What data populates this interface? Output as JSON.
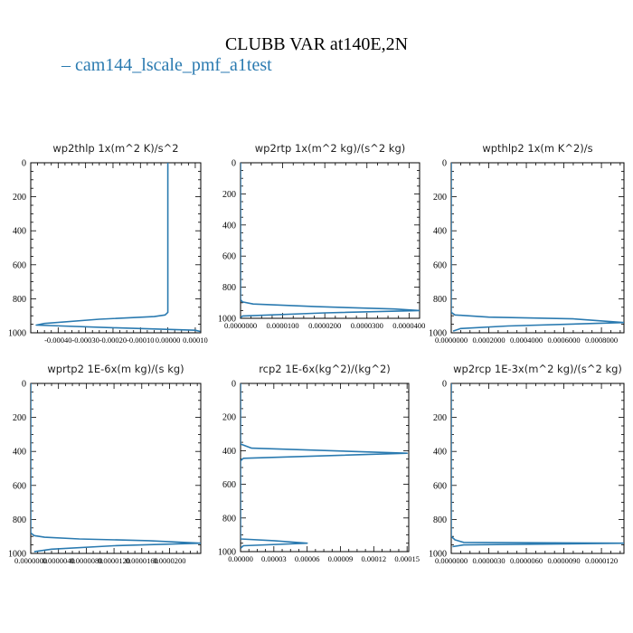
{
  "title": "CLUBB VAR at140E,2N",
  "legend": [
    {
      "label": "cam144_lscale_pmf_a1test",
      "color": "#2a7ab0"
    }
  ],
  "series_color": "#2a7ab0",
  "chart_data": [
    {
      "type": "line",
      "title": "wp2thlp   1x(m^2 K)/s^2",
      "series_name": "cam144_lscale_pmf_a1test",
      "xlim": [
        -0.0005,
        0.00012
      ],
      "ylim": [
        1000,
        0
      ],
      "x_tick_labels": [
        "-0.00040",
        "-0.00030",
        "-0.00020",
        "-0.00010",
        "0.00000",
        "0.00010"
      ],
      "x_tick_values": [
        -0.0004,
        -0.0003,
        -0.0002,
        -0.0001,
        0.0,
        0.0001
      ],
      "y_tick_labels": [
        "0",
        "200",
        "400",
        "600",
        "800",
        "1000"
      ],
      "y_tick_values": [
        0,
        200,
        400,
        600,
        800,
        1000
      ],
      "x": [
        0.0,
        0.0,
        0.0,
        -1e-05,
        -5e-05,
        -0.00025,
        -0.00045,
        -0.00048,
        -0.0002,
        0.0001,
        0.000118
      ],
      "y": [
        0,
        600,
        880,
        895,
        905,
        920,
        945,
        955,
        970,
        985,
        992
      ]
    },
    {
      "type": "line",
      "title": "wp2rtp   1x(m^2 kg)/(s^2 kg)",
      "series_name": "cam144_lscale_pmf_a1test",
      "xlim": [
        0,
        4.25e-05
      ],
      "ylim": [
        1000,
        0
      ],
      "x_tick_labels": [
        "0.0000000",
        "0.0000100",
        "0.0000200",
        "0.0000300",
        "0.0000400"
      ],
      "x_tick_values": [
        0,
        1e-05,
        2e-05,
        3e-05,
        4e-05
      ],
      "y_tick_labels": [
        "0",
        "200",
        "400",
        "600",
        "800",
        "1000"
      ],
      "y_tick_values": [
        0,
        200,
        400,
        600,
        800,
        1000
      ],
      "x": [
        0.0,
        0.0,
        0.0,
        5e-07,
        3e-06,
        1.8e-05,
        3.65e-05,
        4.25e-05,
        2e-05,
        5e-07,
        0.0
      ],
      "y": [
        0,
        600,
        880,
        895,
        908,
        925,
        940,
        950,
        965,
        985,
        995
      ]
    },
    {
      "type": "line",
      "title": "wpthlp2   1x(m K^2)/s",
      "series_name": "cam144_lscale_pmf_a1test",
      "xlim": [
        0,
        0.00092
      ],
      "ylim": [
        1000,
        0
      ],
      "x_tick_labels": [
        "0.0000000",
        "0.0002000",
        "0.0004000",
        "0.0006000",
        "0.0008000"
      ],
      "x_tick_values": [
        0,
        0.0002,
        0.0004,
        0.0006,
        0.0008
      ],
      "y_tick_labels": [
        "0",
        "200",
        "400",
        "600",
        "800",
        "1000"
      ],
      "y_tick_values": [
        0,
        200,
        400,
        600,
        800,
        1000
      ],
      "x": [
        0.0,
        0.0,
        0.0,
        2e-05,
        0.0002,
        0.00065,
        0.00092,
        0.0003,
        5e-05,
        1e-05
      ],
      "y": [
        0,
        600,
        880,
        895,
        908,
        918,
        940,
        960,
        975,
        990
      ]
    },
    {
      "type": "line",
      "title": "wprtp2   1E-6x(m kg)/(s kg)",
      "series_name": "cam144_lscale_pmf_a1test",
      "xlim": [
        0,
        2.45e-05
      ],
      "ylim": [
        1000,
        0
      ],
      "x_tick_labels": [
        "0.0000000",
        "0.0000040",
        "0.0000080",
        "0.0000120",
        "0.0000160",
        "0.0000200"
      ],
      "x_tick_values": [
        0,
        4e-06,
        8e-06,
        1.2e-05,
        1.6e-05,
        2e-05
      ],
      "y_tick_labels": [
        "0",
        "200",
        "400",
        "600",
        "800",
        "1000"
      ],
      "y_tick_values": [
        0,
        200,
        400,
        600,
        800,
        1000
      ],
      "x": [
        0.0,
        0.0,
        0.0,
        5e-07,
        2e-06,
        7e-06,
        1.7e-05,
        2.45e-05,
        1.2e-05,
        3e-06,
        5e-07
      ],
      "y": [
        0,
        600,
        880,
        895,
        905,
        915,
        925,
        940,
        955,
        975,
        990
      ]
    },
    {
      "type": "line",
      "title": "rcp2   1E-6x(kg^2)/(kg^2)",
      "series_name": "cam144_lscale_pmf_a1test",
      "xlim": [
        0,
        0.0001515
      ],
      "ylim": [
        1000,
        0
      ],
      "x_tick_labels": [
        "0.00000",
        "0.00003",
        "0.00006",
        "0.00009",
        "0.00012",
        "0.00015"
      ],
      "x_tick_values": [
        0,
        3e-05,
        6e-05,
        9e-05,
        0.00012,
        0.00015
      ],
      "y_tick_labels": [
        "0",
        "200",
        "400",
        "600",
        "800",
        "1000"
      ],
      "y_tick_values": [
        0,
        200,
        400,
        600,
        800,
        1000
      ],
      "x": [
        0.0,
        0.0,
        0.0,
        1e-05,
        0.00015,
        2.5e-06,
        0.0,
        0.0,
        0.0,
        3e-05,
        6e-05,
        2.5e-06,
        0.0
      ],
      "y": [
        0,
        300,
        360,
        385,
        415,
        445,
        460,
        700,
        925,
        935,
        950,
        965,
        980
      ]
    },
    {
      "type": "line",
      "title": "wp2rcp   1E-3x(m^2 kg)/(s^2 kg)",
      "series_name": "cam144_lscale_pmf_a1test",
      "xlim": [
        0,
        1.38e-05
      ],
      "ylim": [
        1000,
        0
      ],
      "x_tick_labels": [
        "0.0000000",
        "0.0000030",
        "0.0000060",
        "0.0000090",
        "0.0000120"
      ],
      "x_tick_values": [
        0,
        3e-06,
        6e-06,
        9e-06,
        1.2e-05
      ],
      "y_tick_labels": [
        "0",
        "200",
        "400",
        "600",
        "800",
        "1000"
      ],
      "y_tick_values": [
        0,
        200,
        400,
        600,
        800,
        1000
      ],
      "x": [
        0.0,
        0.0,
        0.0,
        3e-07,
        1e-06,
        1.38e-05,
        1e-06,
        1e-07
      ],
      "y": [
        0,
        600,
        900,
        920,
        935,
        940,
        950,
        960
      ]
    }
  ]
}
